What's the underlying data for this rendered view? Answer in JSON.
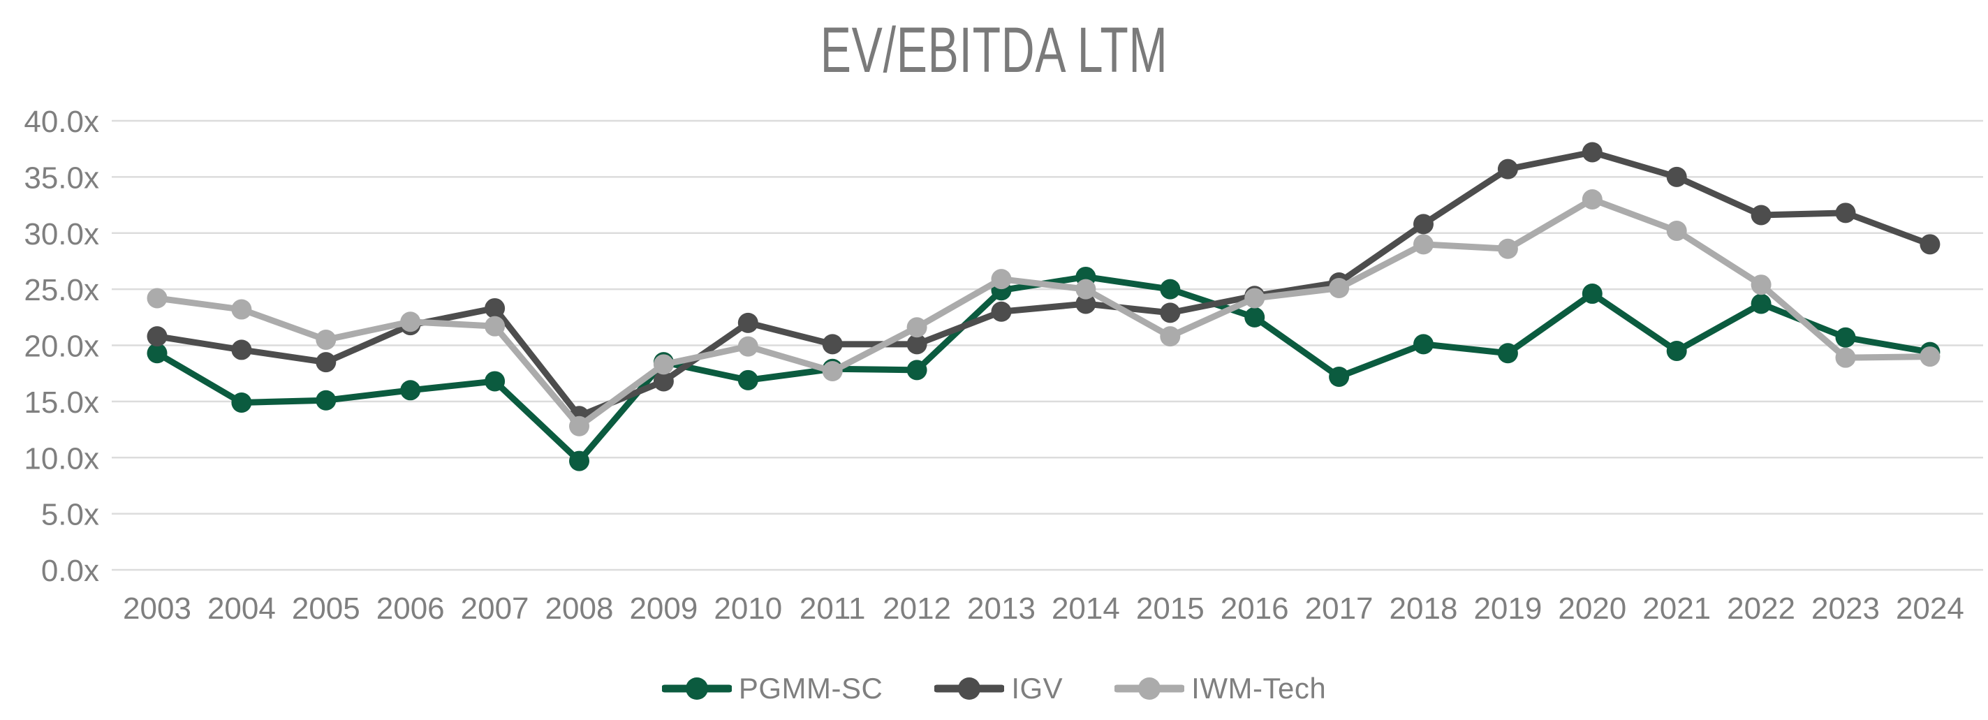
{
  "chart_data": {
    "type": "line",
    "title": "EV/EBITDA LTM",
    "xlabel": "",
    "ylabel": "",
    "ylim": [
      0,
      40
    ],
    "y_tick_step": 5,
    "y_ticks": [
      "0.0x",
      "5.0x",
      "10.0x",
      "15.0x",
      "20.0x",
      "25.0x",
      "30.0x",
      "35.0x",
      "40.0x"
    ],
    "grid": "horizontal",
    "legend_position": "bottom",
    "x": [
      2003,
      2004,
      2005,
      2006,
      2007,
      2008,
      2009,
      2010,
      2011,
      2012,
      2013,
      2014,
      2015,
      2016,
      2017,
      2018,
      2019,
      2020,
      2021,
      2022,
      2023,
      2024
    ],
    "series": [
      {
        "name": "PGMM-SC",
        "color": "#0B5B3F",
        "values": [
          19.3,
          14.9,
          15.1,
          16.0,
          16.8,
          9.7,
          18.5,
          16.9,
          17.9,
          17.8,
          24.9,
          26.1,
          25.0,
          22.5,
          17.2,
          20.1,
          19.3,
          24.6,
          19.5,
          23.7,
          20.7,
          19.4
        ]
      },
      {
        "name": "IGV",
        "color": "#4D4D4D",
        "values": [
          20.8,
          19.6,
          18.5,
          21.8,
          23.3,
          13.7,
          16.8,
          22.0,
          20.1,
          20.1,
          23.0,
          23.7,
          22.9,
          24.4,
          25.6,
          30.8,
          35.7,
          37.2,
          35.0,
          31.6,
          31.8,
          29.0
        ]
      },
      {
        "name": "IWM-Tech",
        "color": "#ABABAB",
        "values": [
          24.2,
          23.2,
          20.5,
          22.1,
          21.7,
          12.8,
          18.3,
          19.9,
          17.7,
          21.6,
          25.9,
          25.0,
          20.8,
          24.2,
          25.1,
          29.0,
          28.6,
          33.0,
          30.2,
          25.4,
          18.9,
          19.0
        ]
      }
    ]
  },
  "colors": {
    "gridline": "#DCDCDC",
    "axis_text": "#7F7F7F",
    "title_text": "#7A7A7A",
    "background": "#FFFFFF"
  }
}
